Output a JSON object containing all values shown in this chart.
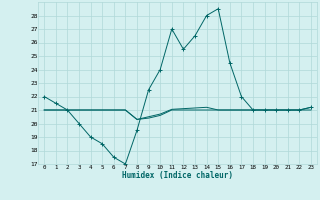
{
  "xlabel": "Humidex (Indice chaleur)",
  "bg_color": "#d4f0f0",
  "grid_color": "#b0d8d8",
  "line_color": "#006666",
  "xlim": [
    -0.5,
    23.5
  ],
  "ylim": [
    17,
    29
  ],
  "yticks": [
    17,
    18,
    19,
    20,
    21,
    22,
    23,
    24,
    25,
    26,
    27,
    28
  ],
  "xticks": [
    0,
    1,
    2,
    3,
    4,
    5,
    6,
    7,
    8,
    9,
    10,
    11,
    12,
    13,
    14,
    15,
    16,
    17,
    18,
    19,
    20,
    21,
    22,
    23
  ],
  "series1_x": [
    0,
    1,
    2,
    3,
    4,
    5,
    6,
    7,
    8,
    9,
    10,
    11,
    12,
    13,
    14,
    15,
    16,
    17,
    18,
    19,
    20,
    21,
    22,
    23
  ],
  "series1_y": [
    22.0,
    21.5,
    21.0,
    20.0,
    19.0,
    18.5,
    17.5,
    17.0,
    19.5,
    22.5,
    24.0,
    27.0,
    25.5,
    26.5,
    28.0,
    28.5,
    24.5,
    22.0,
    21.0,
    21.0,
    21.0,
    21.0,
    21.0,
    21.2
  ],
  "series2_x": [
    0,
    1,
    2,
    3,
    4,
    5,
    6,
    7,
    8,
    9,
    10,
    11,
    12,
    13,
    14,
    15,
    16,
    17,
    18,
    19,
    20,
    21,
    22,
    23
  ],
  "series2_y": [
    21.0,
    21.0,
    21.0,
    21.0,
    21.0,
    21.0,
    21.0,
    21.0,
    20.3,
    20.4,
    20.6,
    21.0,
    21.0,
    21.0,
    21.0,
    21.0,
    21.0,
    21.0,
    21.0,
    21.0,
    21.0,
    21.0,
    21.0,
    21.0
  ],
  "series3_x": [
    0,
    1,
    2,
    3,
    4,
    5,
    6,
    7,
    8,
    9,
    10,
    11,
    12,
    13,
    14,
    15,
    16,
    17,
    18,
    19,
    20,
    21,
    22,
    23
  ],
  "series3_y": [
    21.0,
    21.0,
    21.0,
    21.0,
    21.0,
    21.0,
    21.0,
    21.0,
    20.3,
    20.5,
    20.7,
    21.05,
    21.1,
    21.15,
    21.2,
    21.0,
    21.0,
    21.0,
    21.0,
    21.0,
    21.0,
    21.0,
    21.0,
    21.2
  ]
}
